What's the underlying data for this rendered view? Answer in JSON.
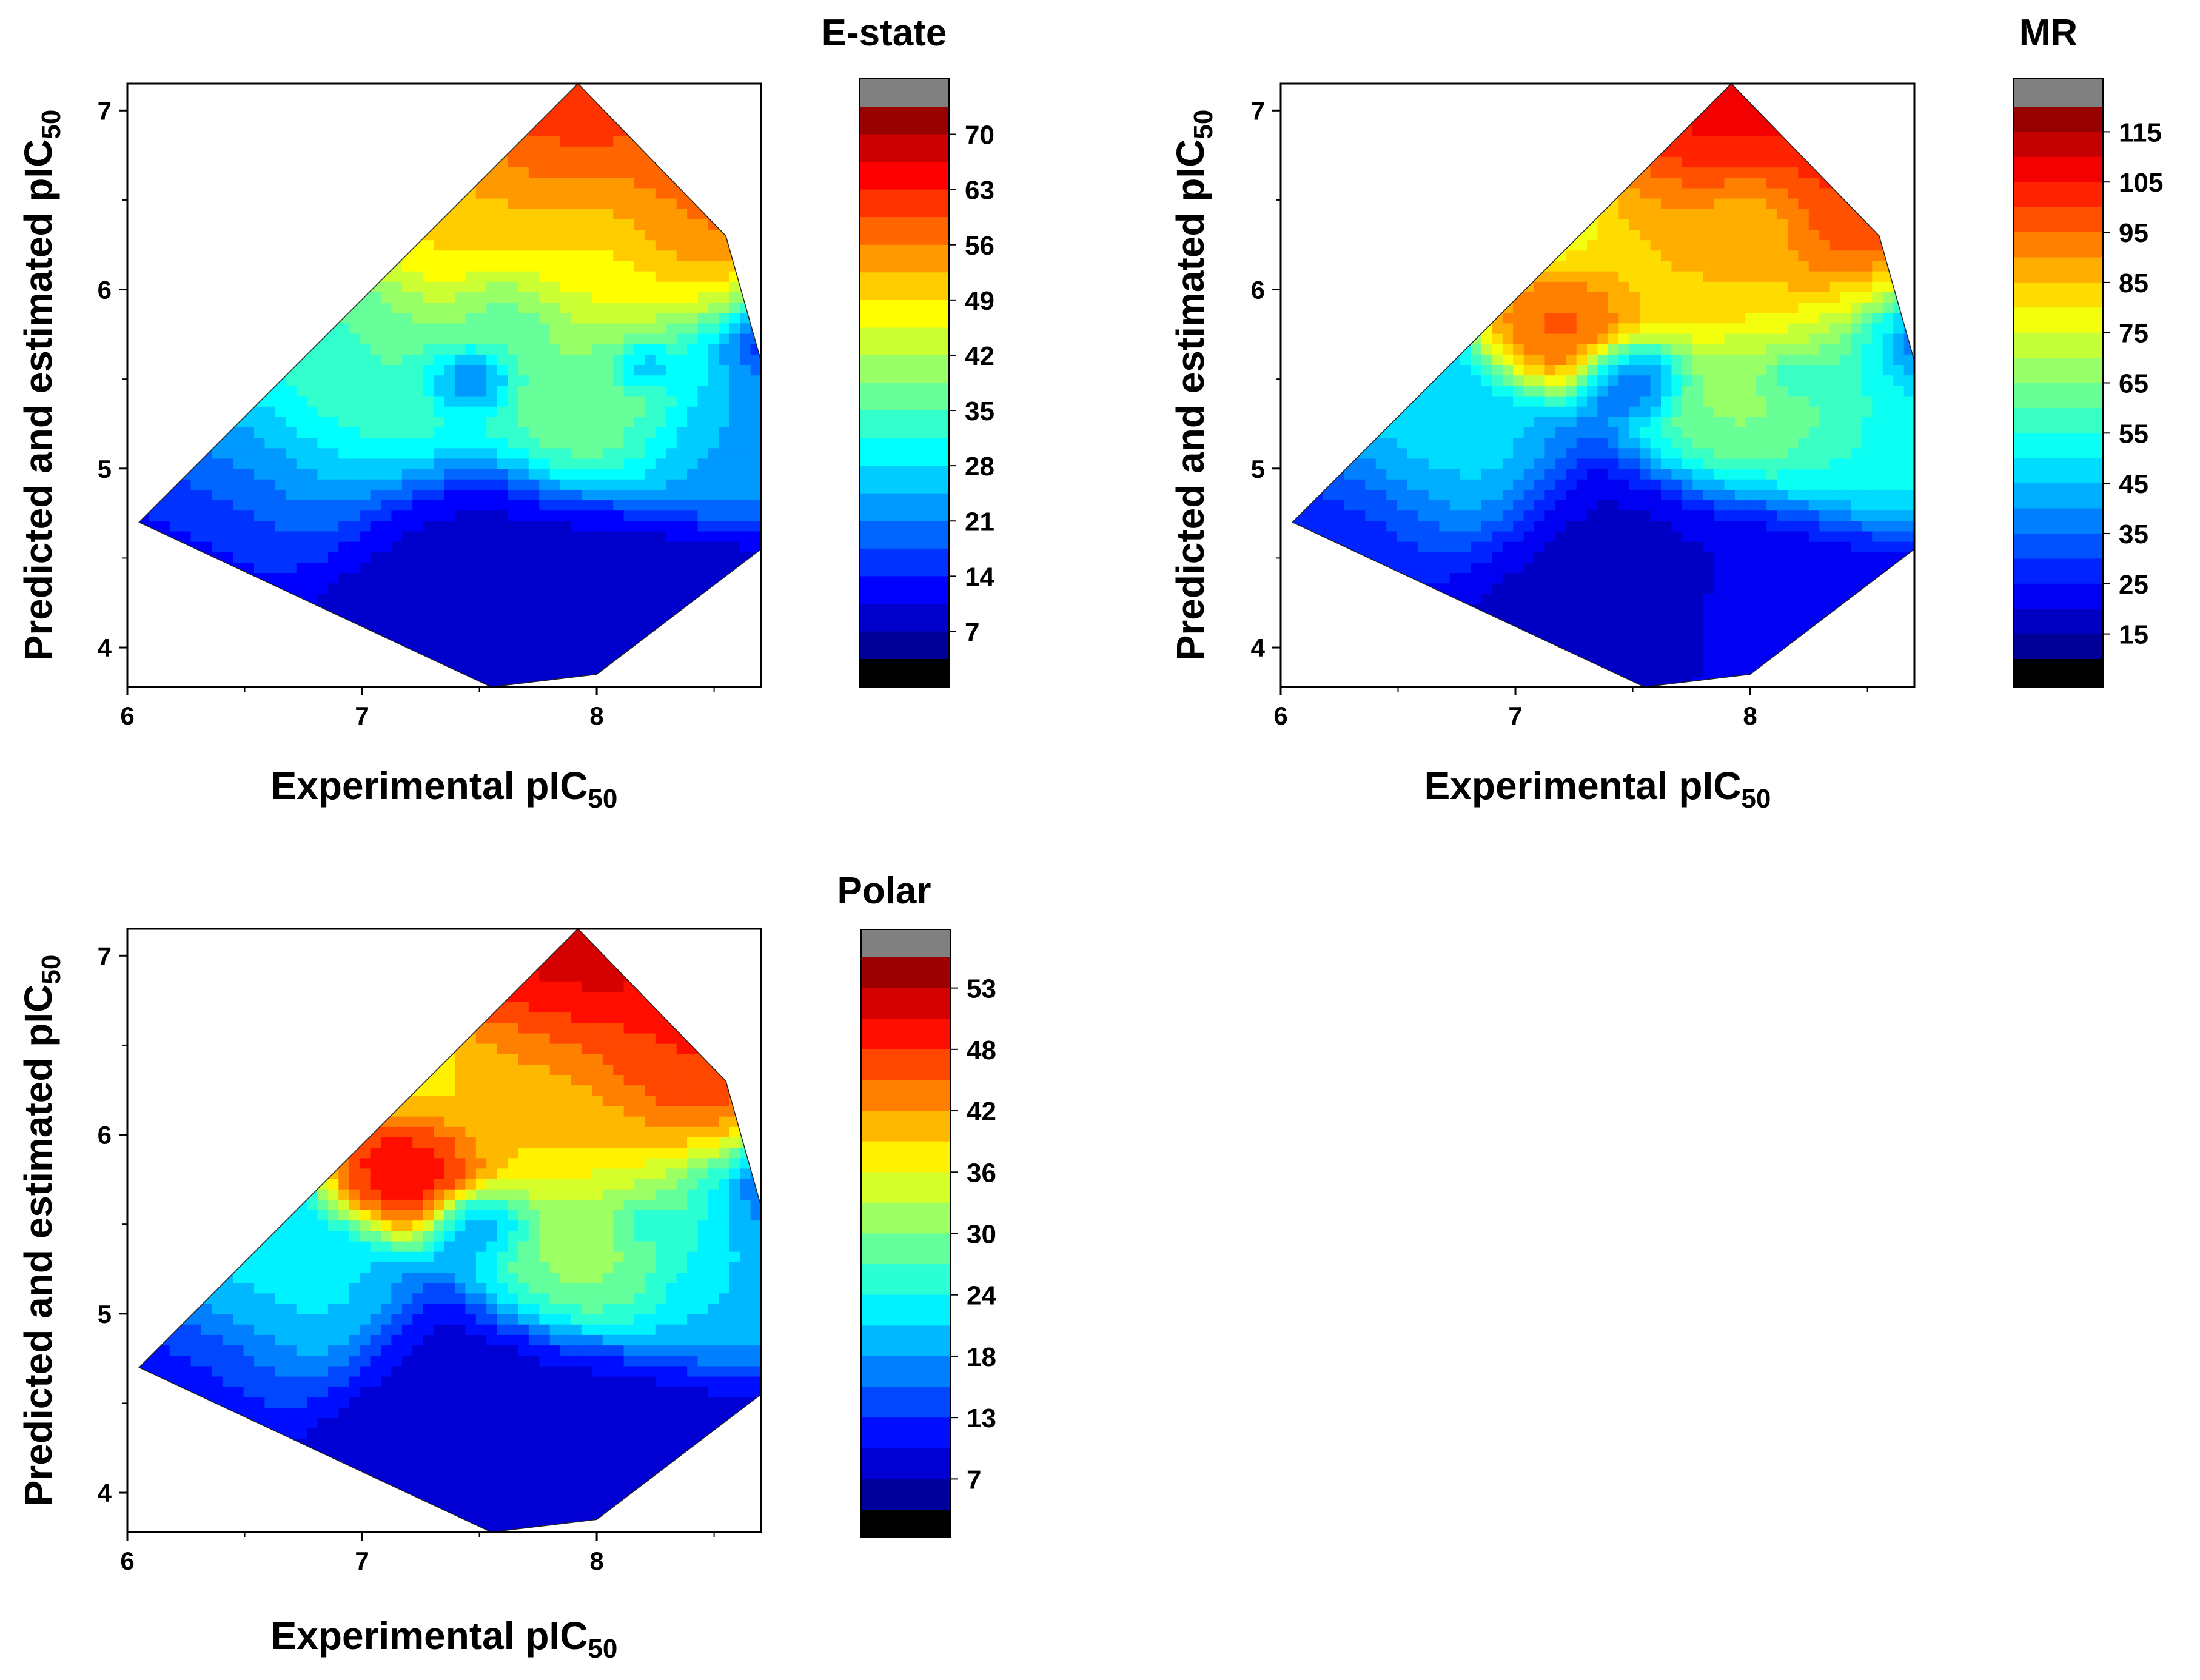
{
  "figure": {
    "panels_count": 3
  },
  "chart_data": [
    {
      "type": "contour",
      "name": "E-state",
      "title": "E-state",
      "xlabel": "Experimental pIC",
      "xlabel_sub": "50",
      "ylabel": "Predicted and estimated pIC",
      "ylabel_sub": "50",
      "xlim": [
        6.0,
        8.7
      ],
      "ylim": [
        3.78,
        7.15
      ],
      "xticks": [
        "6",
        "7",
        "8"
      ],
      "xtick_values": [
        6,
        7,
        8
      ],
      "yticks": [
        "4",
        "5",
        "6",
        "7"
      ],
      "ytick_values": [
        4,
        5,
        6,
        7
      ],
      "hull": [
        [
          6.05,
          4.7
        ],
        [
          7.55,
          3.78
        ],
        [
          8.0,
          3.85
        ],
        [
          8.7,
          4.55
        ],
        [
          8.7,
          5.6
        ],
        [
          8.55,
          6.3
        ],
        [
          7.92,
          7.15
        ]
      ],
      "colorbar": {
        "labels": [
          "70",
          "63",
          "56",
          "49",
          "42",
          "35",
          "28",
          "21",
          "14",
          "7"
        ],
        "min": 3.5,
        "max": 73.5
      },
      "fields": {
        "base": 8,
        "seeds": [
          {
            "x": 7.9,
            "y": 6.9,
            "v": 64,
            "r": 0.45
          },
          {
            "x": 8.35,
            "y": 6.4,
            "v": 62,
            "r": 0.3
          },
          {
            "x": 7.55,
            "y": 6.3,
            "v": 52,
            "r": 0.45
          },
          {
            "x": 8.1,
            "y": 6.25,
            "v": 46,
            "r": 0.35
          },
          {
            "x": 7.6,
            "y": 5.88,
            "v": 33,
            "r": 0.2
          },
          {
            "x": 7.45,
            "y": 5.5,
            "v": 16,
            "r": 0.14
          },
          {
            "x": 8.2,
            "y": 5.55,
            "v": 22,
            "r": 0.1
          },
          {
            "x": 8.5,
            "y": 5.1,
            "v": 24,
            "r": 0.3
          },
          {
            "x": 8.0,
            "y": 5.3,
            "v": 40,
            "r": 0.35
          },
          {
            "x": 7.0,
            "y": 5.5,
            "v": 36,
            "r": 0.45
          },
          {
            "x": 6.5,
            "y": 5.0,
            "v": 24,
            "r": 0.4
          },
          {
            "x": 7.5,
            "y": 4.3,
            "v": 9,
            "r": 0.5
          },
          {
            "x": 8.1,
            "y": 4.2,
            "v": 8,
            "r": 0.45
          },
          {
            "x": 6.3,
            "y": 4.7,
            "v": 11,
            "r": 0.35
          }
        ]
      }
    },
    {
      "type": "contour",
      "name": "MR",
      "title": "MR",
      "xlabel": "Experimental pIC",
      "xlabel_sub": "50",
      "ylabel": "Predicted and estimated pIC",
      "ylabel_sub": "50",
      "xlim": [
        6.0,
        8.7
      ],
      "ylim": [
        3.78,
        7.15
      ],
      "xticks": [
        "6",
        "7",
        "8"
      ],
      "xtick_values": [
        6,
        7,
        8
      ],
      "yticks": [
        "4",
        "5",
        "6",
        "7"
      ],
      "ytick_values": [
        4,
        5,
        6,
        7
      ],
      "hull": [
        [
          6.05,
          4.7
        ],
        [
          7.55,
          3.78
        ],
        [
          8.0,
          3.85
        ],
        [
          8.7,
          4.55
        ],
        [
          8.7,
          5.6
        ],
        [
          8.55,
          6.3
        ],
        [
          7.92,
          7.15
        ]
      ],
      "colorbar": {
        "labels": [
          "115",
          "105",
          "95",
          "85",
          "75",
          "65",
          "55",
          "45",
          "35",
          "25",
          "15"
        ],
        "min": 10,
        "max": 120
      },
      "fields": {
        "base": 20,
        "seeds": [
          {
            "x": 7.95,
            "y": 6.95,
            "v": 112,
            "r": 0.45
          },
          {
            "x": 8.35,
            "y": 6.45,
            "v": 105,
            "r": 0.3
          },
          {
            "x": 7.2,
            "y": 5.8,
            "v": 100,
            "r": 0.25
          },
          {
            "x": 7.85,
            "y": 6.2,
            "v": 88,
            "r": 0.45
          },
          {
            "x": 8.05,
            "y": 6.4,
            "v": 80,
            "r": 0.2
          },
          {
            "x": 7.5,
            "y": 5.5,
            "v": 30,
            "r": 0.16
          },
          {
            "x": 8.2,
            "y": 5.5,
            "v": 50,
            "r": 0.1
          },
          {
            "x": 8.5,
            "y": 5.1,
            "v": 55,
            "r": 0.3
          },
          {
            "x": 8.0,
            "y": 5.3,
            "v": 68,
            "r": 0.35
          },
          {
            "x": 6.6,
            "y": 5.1,
            "v": 50,
            "r": 0.4
          },
          {
            "x": 7.5,
            "y": 4.3,
            "v": 18,
            "r": 0.5
          },
          {
            "x": 8.1,
            "y": 4.2,
            "v": 22,
            "r": 0.45
          },
          {
            "x": 6.3,
            "y": 4.7,
            "v": 24,
            "r": 0.35
          }
        ]
      }
    },
    {
      "type": "contour",
      "name": "Polar",
      "title": "Polar",
      "xlabel": "Experimental pIC",
      "xlabel_sub": "50",
      "ylabel": "Predicted and estimated pIC",
      "ylabel_sub": "50",
      "xlim": [
        6.0,
        8.7
      ],
      "ylim": [
        3.78,
        7.15
      ],
      "xticks": [
        "6",
        "7",
        "8"
      ],
      "xtick_values": [
        6,
        7,
        8
      ],
      "yticks": [
        "4",
        "5",
        "6",
        "7"
      ],
      "ytick_values": [
        4,
        5,
        6,
        7
      ],
      "hull": [
        [
          6.05,
          4.7
        ],
        [
          7.55,
          3.78
        ],
        [
          8.0,
          3.85
        ],
        [
          8.7,
          4.55
        ],
        [
          8.7,
          5.6
        ],
        [
          8.55,
          6.3
        ],
        [
          7.92,
          7.15
        ]
      ],
      "colorbar": {
        "labels": [
          "53",
          "48",
          "42",
          "36",
          "30",
          "24",
          "18",
          "13",
          "7"
        ],
        "min": 6,
        "max": 54
      },
      "fields": {
        "base": 10,
        "seeds": [
          {
            "x": 7.95,
            "y": 6.95,
            "v": 52,
            "r": 0.45
          },
          {
            "x": 8.35,
            "y": 6.4,
            "v": 48,
            "r": 0.3
          },
          {
            "x": 7.2,
            "y": 5.8,
            "v": 50,
            "r": 0.25
          },
          {
            "x": 7.8,
            "y": 6.2,
            "v": 40,
            "r": 0.45
          },
          {
            "x": 7.5,
            "y": 5.5,
            "v": 18,
            "r": 0.15
          },
          {
            "x": 8.2,
            "y": 5.5,
            "v": 24,
            "r": 0.1
          },
          {
            "x": 8.5,
            "y": 5.1,
            "v": 22,
            "r": 0.3
          },
          {
            "x": 8.0,
            "y": 5.3,
            "v": 32,
            "r": 0.35
          },
          {
            "x": 6.6,
            "y": 5.1,
            "v": 24,
            "r": 0.4
          },
          {
            "x": 7.5,
            "y": 4.3,
            "v": 9,
            "r": 0.5
          },
          {
            "x": 8.1,
            "y": 4.2,
            "v": 10,
            "r": 0.45
          },
          {
            "x": 6.3,
            "y": 4.7,
            "v": 12,
            "r": 0.35
          }
        ]
      }
    }
  ]
}
